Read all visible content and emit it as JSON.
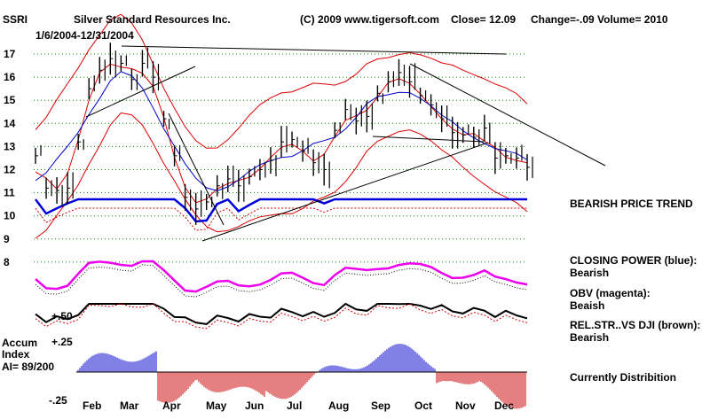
{
  "chart_data": {
    "type": "line",
    "ticker": "SSRI",
    "title": "Silver Standard Resources Inc.",
    "date_range": "1/6/2004-12/31/2004",
    "copyright": "(C) 2009 www.tigersoft.com",
    "close_text": "Close=  12.09",
    "change_text": "Change=-.09",
    "volume_text": "Volume= 2010",
    "y_ticks": [
      8,
      9,
      10,
      11,
      12,
      13,
      14,
      15,
      16,
      17
    ],
    "ylim": [
      8,
      17
    ],
    "x_month_labels": [
      "Feb",
      "Mar",
      "Apr",
      "May",
      "Jun",
      "Jul",
      "Aug",
      "Sep",
      "Oct",
      "Nov",
      "Dec"
    ],
    "price_weekly": {
      "x": [
        "Jan",
        "Jan",
        "Jan",
        "Feb",
        "Feb",
        "Feb",
        "Feb",
        "Mar",
        "Mar",
        "Mar",
        "Mar",
        "Apr",
        "Apr",
        "Apr",
        "Apr",
        "May",
        "May",
        "May",
        "May",
        "Jun",
        "Jun",
        "Jun",
        "Jun",
        "Jul",
        "Jul",
        "Jul",
        "Jul",
        "Aug",
        "Aug",
        "Aug",
        "Aug",
        "Sep",
        "Sep",
        "Sep",
        "Sep",
        "Oct",
        "Oct",
        "Oct",
        "Oct",
        "Nov",
        "Nov",
        "Nov",
        "Nov",
        "Dec",
        "Dec",
        "Dec",
        "Dec"
      ],
      "close": [
        12.6,
        11.2,
        11.1,
        11.2,
        13.2,
        15.5,
        16.3,
        16.8,
        16.6,
        15.9,
        16.6,
        16.0,
        14.2,
        12.6,
        10.8,
        10.3,
        10.6,
        11.3,
        11.6,
        11.3,
        11.7,
        12.0,
        12.4,
        13.2,
        13.3,
        12.8,
        12.3,
        12.0,
        13.7,
        14.6,
        14.1,
        14.3,
        15.3,
        15.8,
        16.2,
        15.8,
        15.2,
        14.8,
        14.2,
        13.6,
        13.5,
        13.4,
        13.8,
        12.5,
        12.6,
        12.5,
        12.1
      ]
    },
    "series": [
      {
        "name": "CLOSING POWER",
        "color": "#0000cc"
      },
      {
        "name": "OBV",
        "color": "#ff00ff"
      },
      {
        "name": "REL.STR..VS DJI",
        "color": "#000000"
      }
    ],
    "accum_index": {
      "label_lines": [
        "Accum",
        "Index",
        "AI= 89/200"
      ],
      "ticks": [
        "+.50",
        "+.25",
        "-.25"
      ]
    },
    "right_labels": [
      {
        "text": "BEARISH PRICE TREND",
        "sub": ""
      },
      {
        "text": "CLOSING POWER (blue):",
        "sub": "Bearish"
      },
      {
        "text": "OBV (magenta):",
        "sub": "Beaish"
      },
      {
        "text": "REL.STR..VS DJI (brown):",
        "sub": "Bearish"
      },
      {
        "text": "Currently Distribition",
        "sub": ""
      }
    ],
    "colors": {
      "price": "#000000",
      "ma_red": "#dd0000",
      "ma_blue": "#0000cc",
      "band_red": "#dd0000",
      "grid": "#008800",
      "accum_pos": "#0000cc",
      "accum_neg": "#cc0000"
    },
    "grid": true
  }
}
